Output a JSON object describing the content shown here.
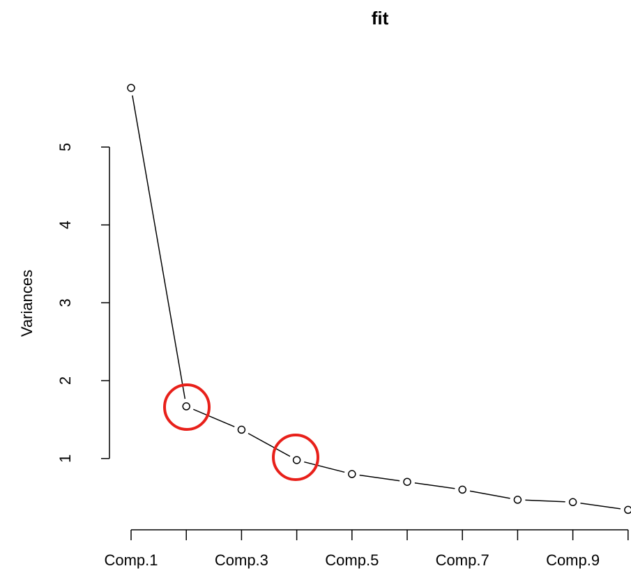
{
  "chart_data": {
    "type": "line",
    "title": "fit",
    "y_label": "Variances",
    "categories": [
      "Comp.1",
      null,
      "Comp.3",
      null,
      "Comp.5",
      null,
      "Comp.7",
      null,
      "Comp.9",
      null
    ],
    "values": [
      5.76,
      1.67,
      1.37,
      0.98,
      0.8,
      0.7,
      0.6,
      0.47,
      0.44,
      0.34
    ],
    "color": "#000000",
    "ylim": [
      0.12,
      5.98
    ],
    "yticks": [
      1,
      2,
      3,
      4,
      5
    ],
    "grid": false
  }
}
